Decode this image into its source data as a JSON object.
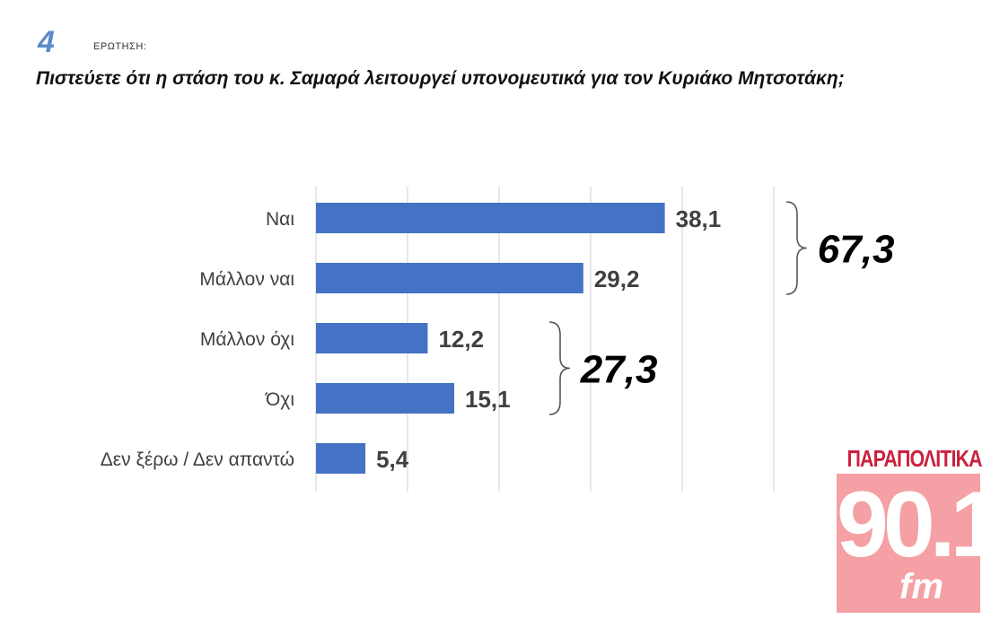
{
  "question": {
    "number": "4",
    "label": "ΕΡΩΤΗΣΗ:",
    "text": "Πιστεύετε ότι η στάση του κ. Σαμαρά λειτουργεί υπονομευτικά για τον Κυριάκο Μητσοτάκη;"
  },
  "chart_data": {
    "type": "bar",
    "orientation": "horizontal",
    "categories": [
      "Ναι",
      "Μάλλον ναι",
      "Μάλλον όχι",
      "Όχι",
      "Δεν ξέρω / Δεν απαντώ"
    ],
    "values": [
      38.1,
      29.2,
      12.2,
      15.1,
      5.4
    ],
    "value_labels": [
      "38,1",
      "29,2",
      "12,2",
      "15,1",
      "5,4"
    ],
    "xlim": [
      0,
      50
    ],
    "grid": true,
    "bar_color": "#4472c4",
    "groups": [
      {
        "members": [
          "Ναι",
          "Μάλλον ναι"
        ],
        "total": 67.3,
        "label": "67,3"
      },
      {
        "members": [
          "Μάλλον όχι",
          "Όχι"
        ],
        "total": 27.3,
        "label": "27,3"
      }
    ]
  },
  "logo": {
    "top_text": "ΠΑΡΑΠΟΛΙΤΙΚΑ",
    "number": "90.1",
    "suffix": "fm",
    "color": "#c9223e",
    "box_color": "#f4a0a4"
  }
}
